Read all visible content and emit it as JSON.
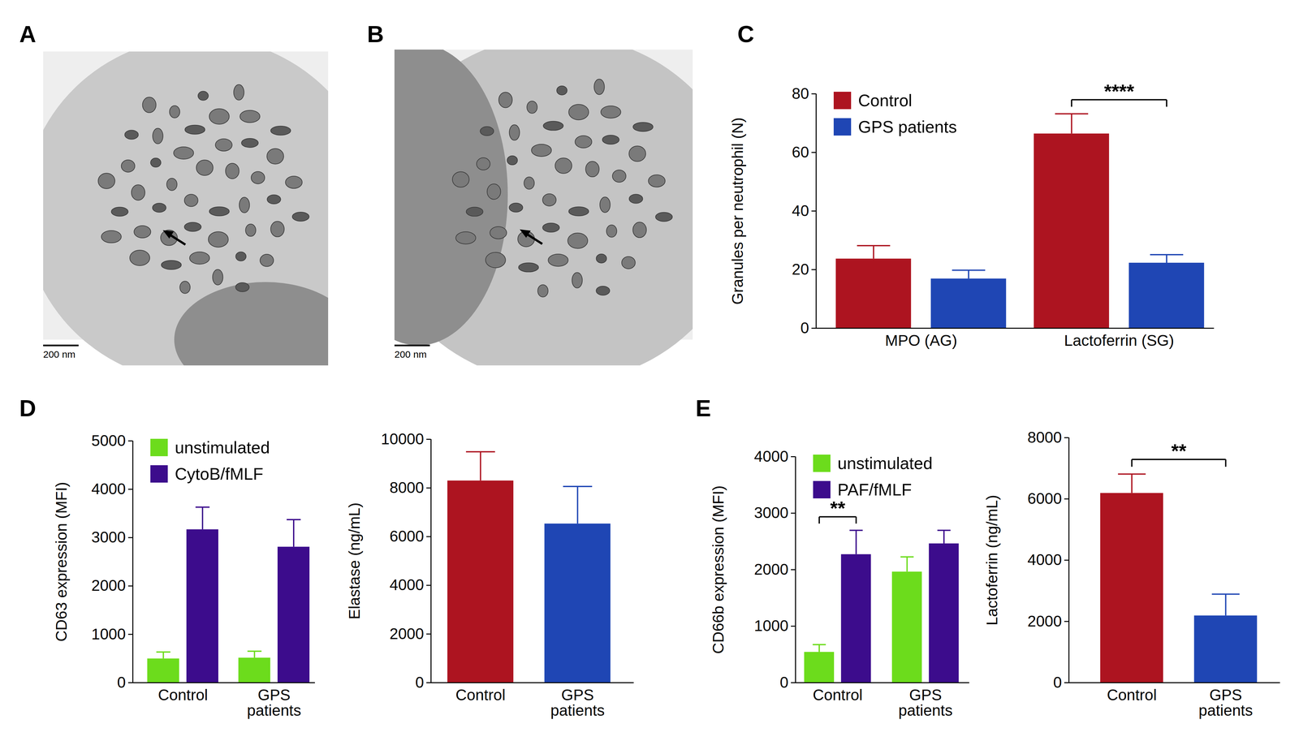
{
  "figure": {
    "micrographs": [
      {
        "panel_label": "A",
        "scale_bar": "200 nm"
      },
      {
        "panel_label": "B",
        "scale_bar": "200 nm"
      }
    ]
  },
  "chart_data": [
    {
      "panel_label": "C",
      "type": "bar",
      "categories": [
        "MPO (AG)",
        "Lactoferrin (SG)"
      ],
      "series": [
        {
          "name": "Control",
          "color": "#ad1420",
          "values": [
            23.7,
            66.4
          ],
          "errors": [
            4.5,
            6.8
          ]
        },
        {
          "name": "GPS patients",
          "color": "#1f46b4",
          "values": [
            16.9,
            22.3
          ],
          "errors": [
            2.9,
            2.8
          ]
        }
      ],
      "ylim": [
        0,
        80
      ],
      "yticks": [
        0,
        20,
        40,
        60,
        80
      ],
      "y_label": "Granules per neutrophil (N)",
      "legend": "top-left",
      "annotations": [
        {
          "text": "****",
          "category": "Lactoferrin (SG)"
        }
      ]
    },
    {
      "panel_label": "D",
      "type": "bar",
      "categories": [
        "Control",
        "GPS\npatients"
      ],
      "series": [
        {
          "name": "unstimulated",
          "color": "#6cdc1c",
          "values": [
            497,
            514
          ],
          "errors": [
            137,
            136
          ]
        },
        {
          "name": "CytoB/fMLF",
          "color": "#3c0c8c",
          "values": [
            3168,
            2808
          ],
          "errors": [
            462,
            565
          ]
        }
      ],
      "ylim": [
        0,
        5000
      ],
      "yticks": [
        0,
        1000,
        2000,
        3000,
        4000,
        5000
      ],
      "y_label": "CD63 expression (MFI)",
      "legend": "top-left"
    },
    {
      "type": "bar",
      "categories": [
        "Control",
        "GPS\npatients"
      ],
      "values": [
        8299,
        6531
      ],
      "errors": [
        1190,
        1530
      ],
      "colors": [
        "#ad1420",
        "#1f46b4"
      ],
      "ylim": [
        0,
        10000
      ],
      "yticks": [
        0,
        2000,
        4000,
        6000,
        8000,
        10000
      ],
      "y_label": "Elastase (ng/mL)"
    },
    {
      "panel_label": "E",
      "type": "bar",
      "categories": [
        "Control",
        "GPS\npatients"
      ],
      "series": [
        {
          "name": "unstimulated",
          "color": "#6cdc1c",
          "values": [
            542,
            1963
          ],
          "errors": [
            132,
            264
          ]
        },
        {
          "name": "PAF/fMLF",
          "color": "#3c0c8c",
          "values": [
            2271,
            2462
          ],
          "errors": [
            425,
            234
          ]
        }
      ],
      "ylim": [
        0,
        4000
      ],
      "yticks": [
        0,
        1000,
        2000,
        3000,
        4000
      ],
      "y_label": "CD66b expression (MFI)",
      "legend": "top-left",
      "annotations": [
        {
          "text": "**",
          "category": "Control"
        }
      ]
    },
    {
      "type": "bar",
      "categories": [
        "Control",
        "GPS\npatients"
      ],
      "values": [
        6189,
        2189
      ],
      "errors": [
        622,
        703
      ],
      "colors": [
        "#ad1420",
        "#1f46b4"
      ],
      "ylim": [
        0,
        8000
      ],
      "yticks": [
        0,
        2000,
        4000,
        6000,
        8000
      ],
      "y_label": "Lactoferrin (ng/mL)",
      "annotations": [
        {
          "text": "**",
          "between": [
            "Control",
            "GPS\npatients"
          ]
        }
      ]
    }
  ]
}
